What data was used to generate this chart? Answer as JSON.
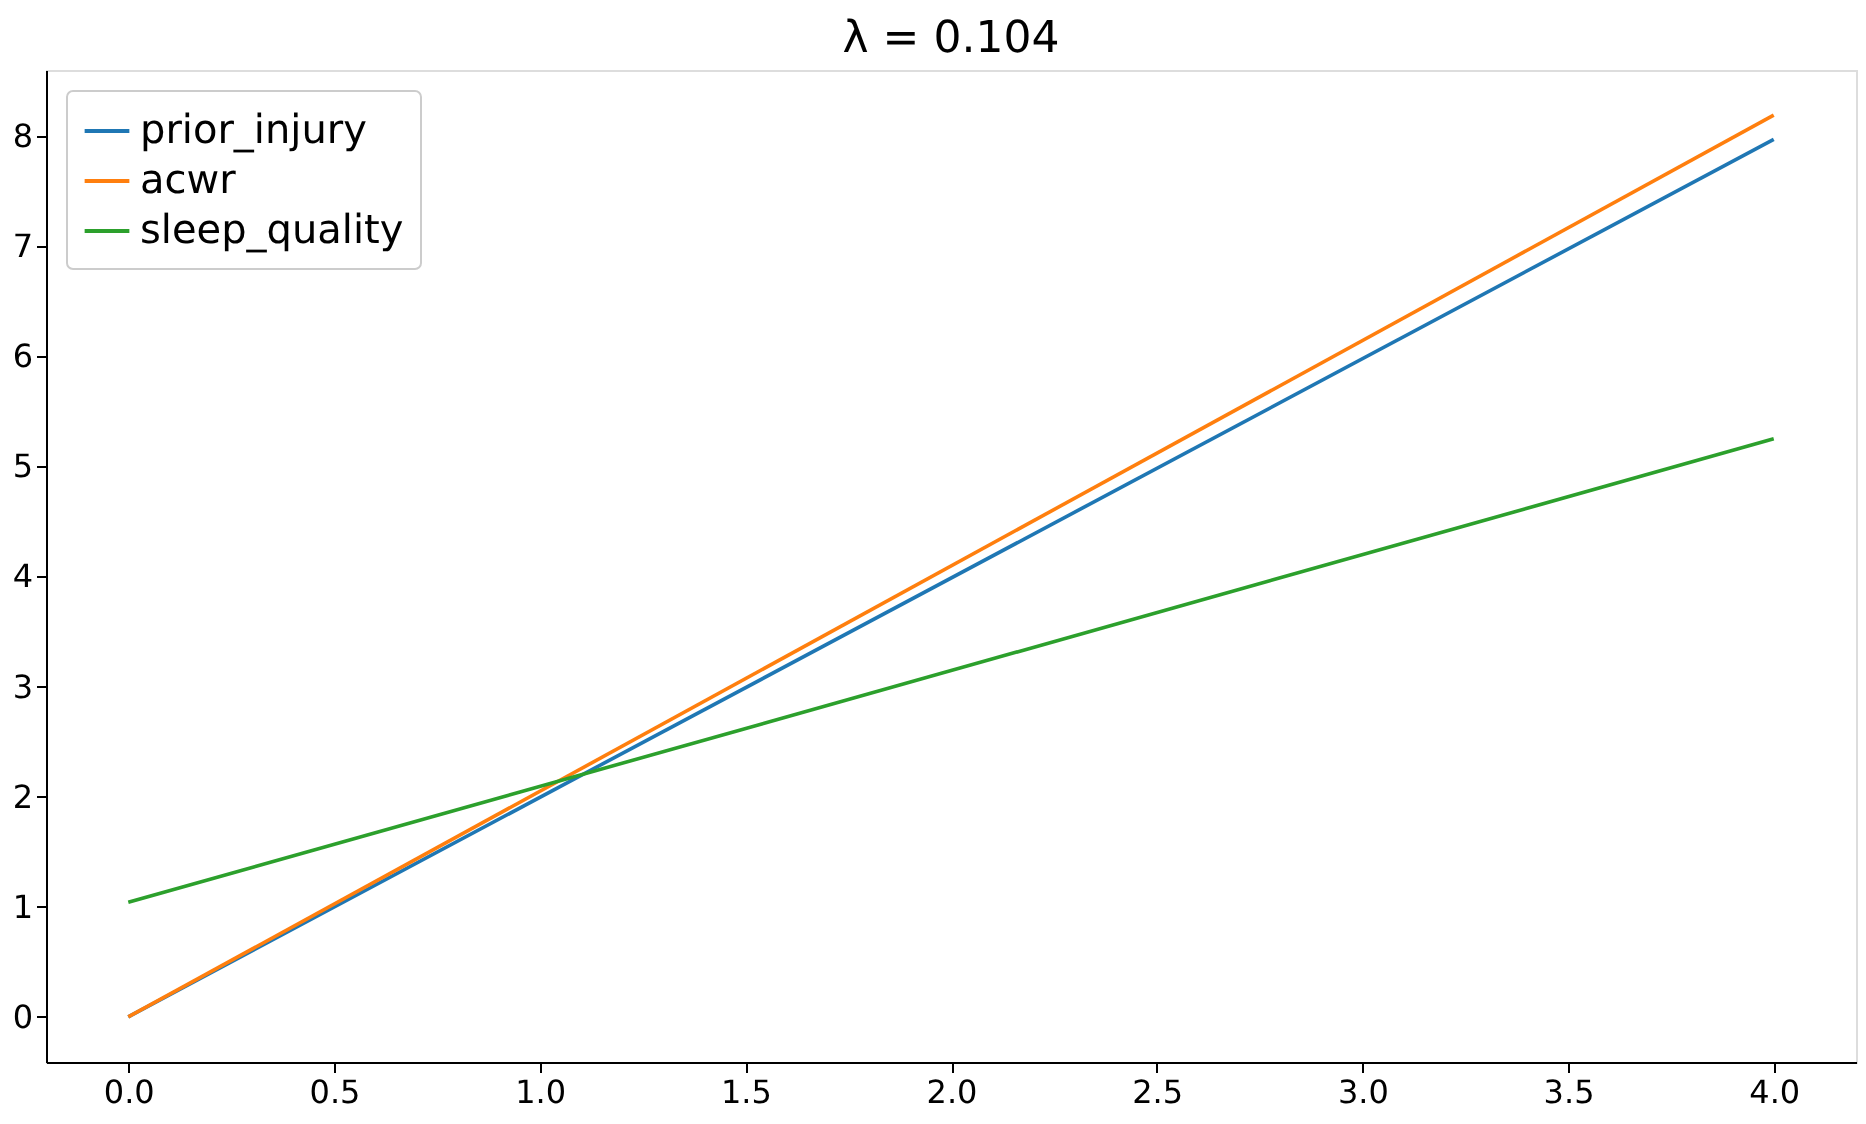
{
  "chart_data": {
    "type": "line",
    "title": "λ = 0.104",
    "x": [
      0,
      4
    ],
    "series": [
      {
        "name": "prior_injury",
        "color": "#1f77b4",
        "values": [
          0,
          7.97
        ]
      },
      {
        "name": "acwr",
        "color": "#ff7f0e",
        "values": [
          0,
          8.19
        ]
      },
      {
        "name": "sleep_quality",
        "color": "#2ca02c",
        "values": [
          1.04,
          5.25
        ]
      }
    ],
    "xlim": [
      -0.2,
      4.2
    ],
    "ylim": [
      -0.41,
      8.6
    ],
    "xticks": [
      {
        "value": 0,
        "label": "0.0"
      },
      {
        "value": 0.5,
        "label": "0.5"
      },
      {
        "value": 1,
        "label": "1.0"
      },
      {
        "value": 1.5,
        "label": "1.5"
      },
      {
        "value": 2,
        "label": "2.0"
      },
      {
        "value": 2.5,
        "label": "2.5"
      },
      {
        "value": 3,
        "label": "3.0"
      },
      {
        "value": 3.5,
        "label": "3.5"
      },
      {
        "value": 4,
        "label": "4.0"
      }
    ],
    "yticks": [
      0,
      1,
      2,
      3,
      4,
      5,
      6,
      7,
      8
    ],
    "grid": false,
    "legend": "top left",
    "marker": "none",
    "line_style": "solid"
  }
}
